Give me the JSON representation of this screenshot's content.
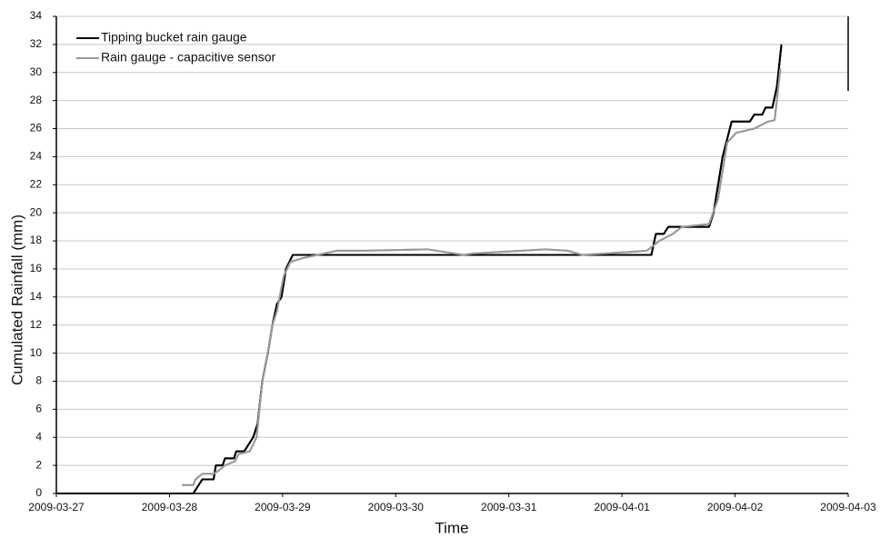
{
  "chart_data": {
    "type": "line",
    "x_label": "Time",
    "y_label": "Cumulated Rainfall (mm)",
    "xlim": [
      0,
      7
    ],
    "xticks": [
      {
        "value": 0,
        "label": "2009-03-27"
      },
      {
        "value": 1,
        "label": "2009-03-28"
      },
      {
        "value": 2,
        "label": "2009-03-29"
      },
      {
        "value": 3,
        "label": "2009-03-30"
      },
      {
        "value": 4,
        "label": "2009-03-31"
      },
      {
        "value": 5,
        "label": "2009-04-01"
      },
      {
        "value": 6,
        "label": "2009-04-02"
      },
      {
        "value": 7,
        "label": "2009-04-03"
      }
    ],
    "ylim": [
      0,
      34
    ],
    "yticks": [
      0,
      2,
      4,
      6,
      8,
      10,
      12,
      14,
      16,
      18,
      20,
      22,
      24,
      26,
      28,
      30,
      32,
      34
    ],
    "grid": true,
    "legend": "top-left",
    "series": [
      {
        "name": "Tipping bucket rain gauge",
        "color": "#000000",
        "x": [
          0,
          1.21,
          1.29,
          1.39,
          1.41,
          1.47,
          1.49,
          1.57,
          1.59,
          1.66,
          1.74,
          1.78,
          1.82,
          1.87,
          1.91,
          1.95,
          1.99,
          2.03,
          2.09,
          5.26,
          5.3,
          5.37,
          5.41,
          5.77,
          5.81,
          5.89,
          5.97,
          6.13,
          6.17,
          6.24,
          6.27,
          6.33,
          6.37,
          6.41
        ],
        "values": [
          0,
          0,
          1,
          1,
          2,
          2,
          2.5,
          2.5,
          3,
          3,
          4,
          5,
          8,
          10,
          12,
          13.5,
          14,
          16,
          17,
          17,
          18.5,
          18.5,
          19,
          19,
          20,
          24,
          26.5,
          26.5,
          27,
          27,
          27.5,
          27.5,
          29,
          32
        ]
      },
      {
        "name": "Rain gauge - capacitive sensor",
        "color": "#999999",
        "x": [
          1.11,
          1.21,
          1.23,
          1.29,
          1.39,
          1.43,
          1.49,
          1.58,
          1.61,
          1.71,
          1.77,
          1.82,
          1.87,
          1.91,
          1.95,
          2.01,
          2.07,
          2.19,
          2.31,
          2.48,
          2.72,
          3.28,
          3.6,
          3.68,
          4.32,
          4.52,
          4.65,
          5.05,
          5.22,
          5.33,
          5.45,
          5.53,
          5.77,
          5.85,
          5.93,
          6.01,
          6.17,
          6.29,
          6.35,
          6.4
        ],
        "values": [
          0.6,
          0.6,
          1,
          1.4,
          1.4,
          1.6,
          2,
          2.3,
          2.8,
          3,
          4,
          8,
          10,
          12,
          13,
          15.5,
          16.5,
          16.8,
          17,
          17.3,
          17.3,
          17.4,
          17,
          17.1,
          17.4,
          17.3,
          17,
          17.2,
          17.3,
          18,
          18.5,
          19,
          19.2,
          21,
          25,
          25.7,
          26,
          26.5,
          26.6,
          30.3
        ]
      }
    ]
  }
}
